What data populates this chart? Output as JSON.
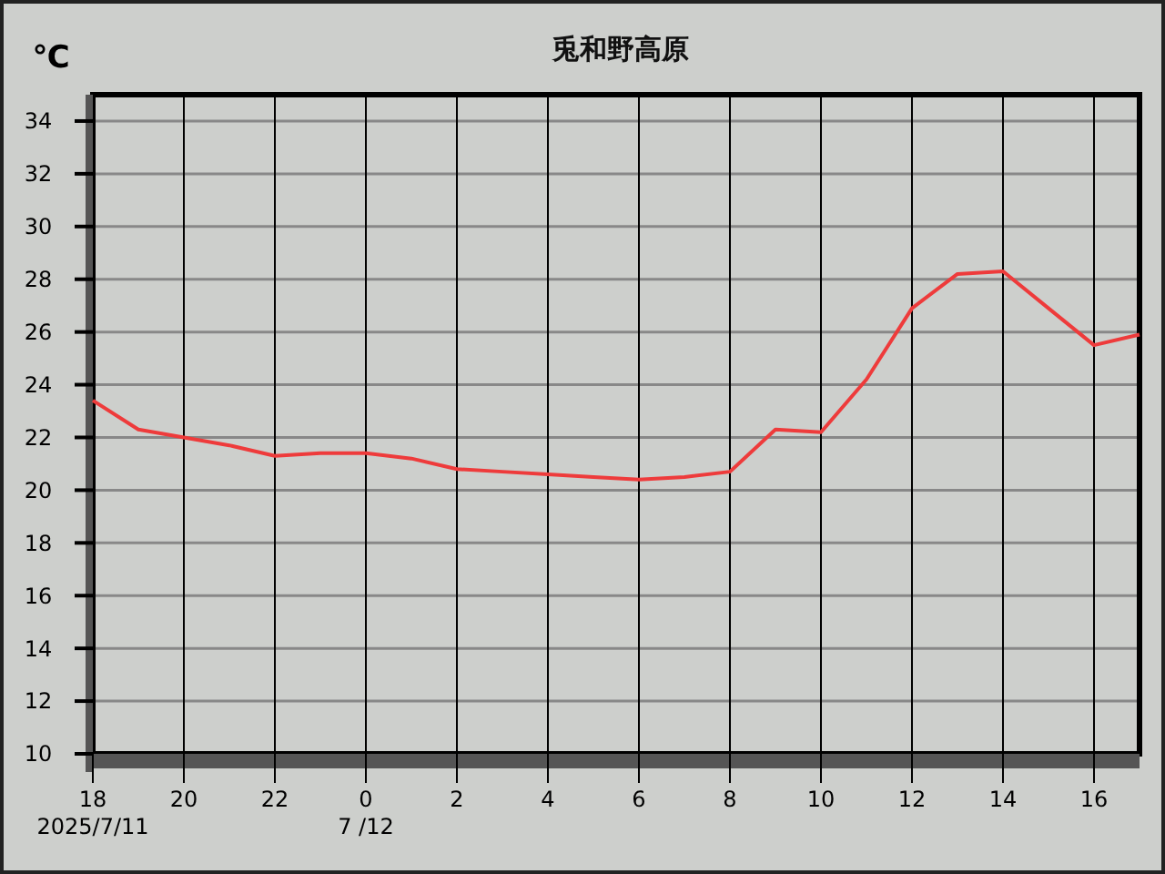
{
  "chart_data": {
    "type": "line",
    "title": "兎和野高原",
    "ylabel": "℃",
    "x": [
      "2025-07-11T18:00",
      "2025-07-11T19:00",
      "2025-07-11T20:00",
      "2025-07-11T21:00",
      "2025-07-11T22:00",
      "2025-07-11T23:00",
      "2025-07-12T00:00",
      "2025-07-12T01:00",
      "2025-07-12T02:00",
      "2025-07-12T03:00",
      "2025-07-12T04:00",
      "2025-07-12T05:00",
      "2025-07-12T06:00",
      "2025-07-12T07:00",
      "2025-07-12T08:00",
      "2025-07-12T09:00",
      "2025-07-12T10:00",
      "2025-07-12T11:00",
      "2025-07-12T12:00",
      "2025-07-12T13:00",
      "2025-07-12T14:00",
      "2025-07-12T15:00",
      "2025-07-12T16:00",
      "2025-07-12T17:00"
    ],
    "series": [
      {
        "color": "#ee3b3b",
        "values": [
          23.4,
          22.3,
          22.0,
          21.7,
          21.3,
          21.4,
          21.4,
          21.2,
          20.8,
          20.7,
          20.6,
          20.5,
          20.4,
          20.5,
          20.7,
          22.3,
          22.2,
          24.2,
          26.9,
          28.2,
          28.3,
          26.9,
          25.5,
          25.9
        ]
      }
    ],
    "xlim": [
      "2025-07-11T18:00",
      "2025-07-12T17:00"
    ],
    "xticks": [
      {
        "value": "2025-07-11T18:00",
        "label": "18"
      },
      {
        "value": "2025-07-11T20:00",
        "label": "20"
      },
      {
        "value": "2025-07-11T22:00",
        "label": "22"
      },
      {
        "value": "2025-07-12T00:00",
        "label": "0"
      },
      {
        "value": "2025-07-12T02:00",
        "label": "2"
      },
      {
        "value": "2025-07-12T04:00",
        "label": "4"
      },
      {
        "value": "2025-07-12T06:00",
        "label": "6"
      },
      {
        "value": "2025-07-12T08:00",
        "label": "8"
      },
      {
        "value": "2025-07-12T10:00",
        "label": "10"
      },
      {
        "value": "2025-07-12T12:00",
        "label": "12"
      },
      {
        "value": "2025-07-12T14:00",
        "label": "14"
      },
      {
        "value": "2025-07-12T16:00",
        "label": "16"
      }
    ],
    "ylim": [
      10,
      35
    ],
    "yticks": [
      10,
      12,
      14,
      16,
      18,
      20,
      22,
      24,
      26,
      28,
      30,
      32,
      34
    ],
    "annotations": [
      "2025/7/11",
      "7 /12"
    ],
    "grid": true,
    "marker": "none",
    "line_style": "solid"
  }
}
